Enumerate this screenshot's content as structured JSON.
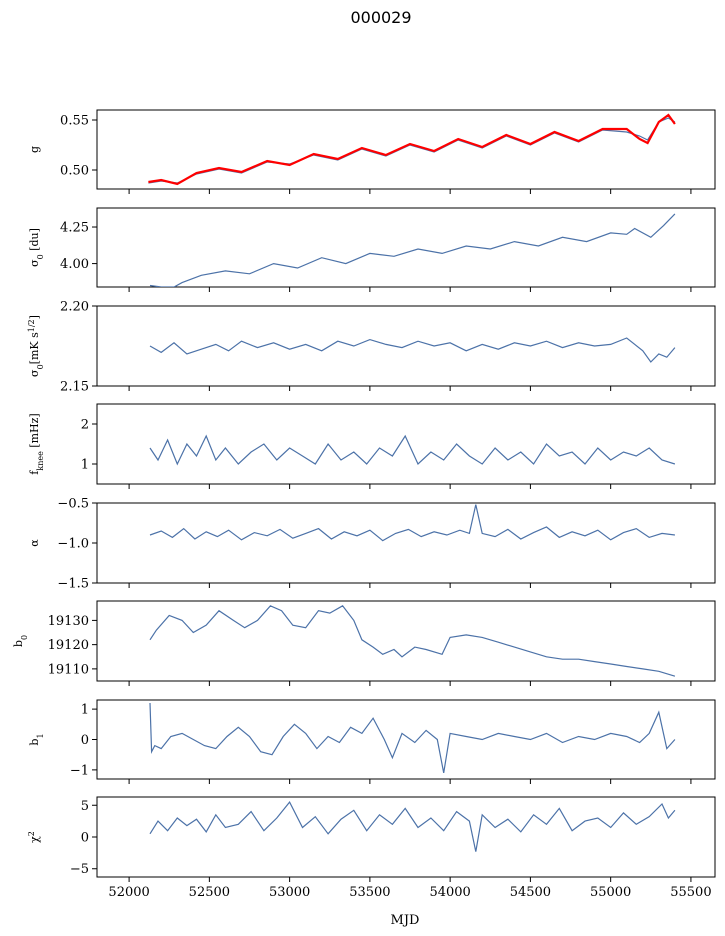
{
  "figure": {
    "title": "000029",
    "xlabel": "MJD"
  },
  "colors": {
    "series": "#4c72a8",
    "highlight": "#ff0000",
    "frame": "#000000"
  },
  "chart_data": [
    {
      "id": "g",
      "type": "line",
      "ylabel": "g",
      "xlim": [
        51800,
        55650
      ],
      "ylim": [
        0.481,
        0.56
      ],
      "yticks": [
        0.5,
        0.55
      ],
      "yticklabels": [
        "0.50",
        "0.55"
      ],
      "xticks": [
        52000,
        52500,
        53000,
        53500,
        54000,
        54500,
        55000,
        55500
      ],
      "show_xticklabels": false,
      "series": [
        {
          "x": [
            52120,
            52200,
            52300,
            52420,
            52560,
            52700,
            52860,
            53000,
            53150,
            53300,
            53450,
            53600,
            53750,
            53900,
            54050,
            54200,
            54350,
            54500,
            54650,
            54800,
            54950,
            55100,
            55180,
            55230,
            55300,
            55360,
            55400
          ],
          "y": [
            0.487,
            0.489,
            0.487,
            0.496,
            0.501,
            0.497,
            0.508,
            0.506,
            0.515,
            0.51,
            0.521,
            0.514,
            0.525,
            0.518,
            0.53,
            0.522,
            0.534,
            0.525,
            0.537,
            0.528,
            0.54,
            0.538,
            0.534,
            0.53,
            0.548,
            0.552,
            0.548
          ]
        }
      ],
      "overlay": {
        "color": "#ff0000",
        "x": [
          52120,
          52200,
          52300,
          52420,
          52560,
          52700,
          52860,
          53000,
          53150,
          53300,
          53450,
          53600,
          53750,
          53900,
          54050,
          54200,
          54350,
          54500,
          54650,
          54800,
          54950,
          55100,
          55180,
          55230,
          55300,
          55360,
          55400
        ],
        "y": [
          0.488,
          0.49,
          0.486,
          0.497,
          0.502,
          0.498,
          0.509,
          0.505,
          0.516,
          0.511,
          0.522,
          0.515,
          0.526,
          0.519,
          0.531,
          0.523,
          0.535,
          0.526,
          0.538,
          0.529,
          0.541,
          0.541,
          0.531,
          0.527,
          0.548,
          0.555,
          0.546
        ]
      }
    },
    {
      "id": "sigma0",
      "type": "line",
      "ylabel": "σ0 [du]",
      "xlim": [
        51800,
        55650
      ],
      "ylim": [
        3.84,
        4.38
      ],
      "yticks": [
        4.0,
        4.25
      ],
      "yticklabels": [
        "4.00",
        "4.25"
      ],
      "xticks": [
        52000,
        52500,
        53000,
        53500,
        54000,
        54500,
        55000,
        55500
      ],
      "show_xticklabels": false,
      "series": [
        {
          "x": [
            52130,
            52200,
            52280,
            52330,
            52450,
            52600,
            52750,
            52900,
            53050,
            53200,
            53350,
            53500,
            53650,
            53800,
            53950,
            54100,
            54250,
            54400,
            54550,
            54700,
            54850,
            55000,
            55100,
            55150,
            55250,
            55330,
            55400
          ],
          "y": [
            3.85,
            3.84,
            3.84,
            3.87,
            3.92,
            3.95,
            3.93,
            4.0,
            3.97,
            4.04,
            4.0,
            4.07,
            4.05,
            4.1,
            4.07,
            4.12,
            4.1,
            4.15,
            4.12,
            4.18,
            4.15,
            4.21,
            4.2,
            4.24,
            4.18,
            4.26,
            4.34
          ]
        }
      ]
    },
    {
      "id": "sigma0_noise",
      "type": "line",
      "ylabel": "σ0[mK s^1/2]",
      "xlim": [
        51800,
        55650
      ],
      "ylim": [
        2.15,
        2.2
      ],
      "yticks": [
        2.15,
        2.2
      ],
      "yticklabels": [
        "2.15",
        "2.20"
      ],
      "xticks": [
        52000,
        52500,
        53000,
        53500,
        54000,
        54500,
        55000,
        55500
      ],
      "show_xticklabels": false,
      "series": [
        {
          "x": [
            52130,
            52200,
            52280,
            52360,
            52450,
            52540,
            52620,
            52700,
            52800,
            52900,
            53000,
            53100,
            53200,
            53300,
            53400,
            53500,
            53600,
            53700,
            53800,
            53900,
            54000,
            54100,
            54200,
            54300,
            54400,
            54500,
            54600,
            54700,
            54800,
            54900,
            55000,
            55100,
            55200,
            55250,
            55300,
            55350,
            55400
          ],
          "y": [
            2.175,
            2.171,
            2.177,
            2.17,
            2.173,
            2.176,
            2.172,
            2.178,
            2.174,
            2.177,
            2.173,
            2.176,
            2.172,
            2.178,
            2.175,
            2.179,
            2.176,
            2.174,
            2.178,
            2.175,
            2.177,
            2.172,
            2.176,
            2.173,
            2.177,
            2.175,
            2.178,
            2.174,
            2.177,
            2.175,
            2.176,
            2.18,
            2.172,
            2.165,
            2.17,
            2.168,
            2.174
          ]
        }
      ]
    },
    {
      "id": "fknee",
      "type": "line",
      "ylabel": "f_knee [mHz]",
      "xlim": [
        51800,
        55650
      ],
      "ylim": [
        0.5,
        2.5
      ],
      "yticks": [
        1,
        2
      ],
      "yticklabels": [
        "1",
        "2"
      ],
      "xticks": [
        52000,
        52500,
        53000,
        53500,
        54000,
        54500,
        55000,
        55500
      ],
      "show_xticklabels": false,
      "series": [
        {
          "x": [
            52130,
            52180,
            52240,
            52300,
            52360,
            52420,
            52480,
            52540,
            52600,
            52680,
            52760,
            52840,
            52920,
            53000,
            53080,
            53160,
            53240,
            53320,
            53400,
            53480,
            53560,
            53640,
            53720,
            53800,
            53880,
            53960,
            54040,
            54120,
            54200,
            54280,
            54360,
            54440,
            54520,
            54600,
            54680,
            54760,
            54840,
            54920,
            55000,
            55080,
            55160,
            55240,
            55320,
            55400
          ],
          "y": [
            1.4,
            1.1,
            1.6,
            1.0,
            1.5,
            1.2,
            1.7,
            1.1,
            1.4,
            1.0,
            1.3,
            1.5,
            1.1,
            1.4,
            1.2,
            1.0,
            1.5,
            1.1,
            1.3,
            1.0,
            1.4,
            1.2,
            1.7,
            1.0,
            1.3,
            1.1,
            1.5,
            1.2,
            1.0,
            1.4,
            1.1,
            1.3,
            1.0,
            1.5,
            1.2,
            1.3,
            1.0,
            1.4,
            1.1,
            1.3,
            1.2,
            1.4,
            1.1,
            1.0
          ]
        }
      ]
    },
    {
      "id": "alpha",
      "type": "line",
      "ylabel": "α",
      "xlim": [
        51800,
        55650
      ],
      "ylim": [
        -1.5,
        -0.5
      ],
      "yticks": [
        -1.5,
        -1.0,
        -0.5
      ],
      "yticklabels": [
        "−1.5",
        "−1.0",
        "−0.5"
      ],
      "xticks": [
        52000,
        52500,
        53000,
        53500,
        54000,
        54500,
        55000,
        55500
      ],
      "show_xticklabels": false,
      "series": [
        {
          "x": [
            52130,
            52200,
            52270,
            52340,
            52410,
            52480,
            52550,
            52620,
            52700,
            52780,
            52860,
            52940,
            53020,
            53100,
            53180,
            53260,
            53340,
            53420,
            53500,
            53580,
            53660,
            53740,
            53820,
            53900,
            53980,
            54060,
            54120,
            54160,
            54200,
            54280,
            54360,
            54440,
            54520,
            54600,
            54680,
            54760,
            54840,
            54920,
            55000,
            55080,
            55160,
            55240,
            55320,
            55400
          ],
          "y": [
            -0.9,
            -0.85,
            -0.93,
            -0.82,
            -0.95,
            -0.86,
            -0.92,
            -0.84,
            -0.96,
            -0.87,
            -0.91,
            -0.83,
            -0.94,
            -0.88,
            -0.82,
            -0.95,
            -0.86,
            -0.91,
            -0.84,
            -0.97,
            -0.88,
            -0.83,
            -0.92,
            -0.86,
            -0.9,
            -0.84,
            -0.88,
            -0.52,
            -0.88,
            -0.92,
            -0.83,
            -0.95,
            -0.87,
            -0.8,
            -0.93,
            -0.86,
            -0.91,
            -0.84,
            -0.96,
            -0.87,
            -0.82,
            -0.93,
            -0.88,
            -0.9
          ]
        }
      ]
    },
    {
      "id": "b0",
      "type": "line",
      "ylabel": "b0",
      "xlim": [
        51800,
        55650
      ],
      "ylim": [
        19105,
        19138
      ],
      "yticks": [
        19110,
        19120,
        19130
      ],
      "yticklabels": [
        "19110",
        "19120",
        "19130"
      ],
      "xticks": [
        52000,
        52500,
        53000,
        53500,
        54000,
        54500,
        55000,
        55500
      ],
      "show_xticklabels": false,
      "series": [
        {
          "x": [
            52130,
            52170,
            52250,
            52330,
            52400,
            52480,
            52560,
            52650,
            52720,
            52800,
            52880,
            52950,
            53020,
            53100,
            53180,
            53250,
            53330,
            53400,
            53450,
            53520,
            53580,
            53650,
            53700,
            53780,
            53850,
            53950,
            54000,
            54100,
            54200,
            54300,
            54400,
            54500,
            54600,
            54700,
            54800,
            54900,
            55000,
            55100,
            55200,
            55300,
            55400
          ],
          "y": [
            19122,
            19126,
            19132,
            19130,
            19125,
            19128,
            19134,
            19130,
            19127,
            19130,
            19136,
            19134,
            19128,
            19127,
            19134,
            19133,
            19136,
            19130,
            19122,
            19119,
            19116,
            19118,
            19115,
            19119,
            19118,
            19116,
            19123,
            19124,
            19123,
            19121,
            19119,
            19117,
            19115,
            19114,
            19114,
            19113,
            19112,
            19111,
            19110,
            19109,
            19107
          ]
        }
      ]
    },
    {
      "id": "b1",
      "type": "line",
      "ylabel": "b1",
      "xlim": [
        51800,
        55650
      ],
      "ylim": [
        -1.3,
        1.3
      ],
      "yticks": [
        -1,
        0,
        1
      ],
      "yticklabels": [
        "−1",
        "0",
        "1"
      ],
      "xticks": [
        52000,
        52500,
        53000,
        53500,
        54000,
        54500,
        55000,
        55500
      ],
      "show_xticklabels": false,
      "series": [
        {
          "x": [
            52130,
            52140,
            52160,
            52200,
            52260,
            52330,
            52400,
            52470,
            52540,
            52610,
            52680,
            52750,
            52820,
            52890,
            52960,
            53030,
            53100,
            53170,
            53240,
            53310,
            53380,
            53450,
            53520,
            53590,
            53640,
            53700,
            53780,
            53850,
            53920,
            53960,
            54000,
            54100,
            54200,
            54300,
            54400,
            54500,
            54600,
            54700,
            54800,
            54900,
            55000,
            55100,
            55180,
            55240,
            55300,
            55350,
            55400
          ],
          "y": [
            1.2,
            -0.4,
            -0.2,
            -0.3,
            0.1,
            0.2,
            0.0,
            -0.2,
            -0.3,
            0.1,
            0.4,
            0.1,
            -0.4,
            -0.5,
            0.1,
            0.5,
            0.2,
            -0.3,
            0.1,
            -0.1,
            0.4,
            0.2,
            0.7,
            0.0,
            -0.6,
            0.2,
            -0.1,
            0.3,
            0.0,
            -1.1,
            0.2,
            0.1,
            0.0,
            0.2,
            0.1,
            0.0,
            0.2,
            -0.1,
            0.1,
            0.0,
            0.2,
            0.1,
            -0.1,
            0.2,
            0.9,
            -0.3,
            0.0
          ]
        }
      ]
    },
    {
      "id": "chi2",
      "type": "line",
      "ylabel": "χ²",
      "xlim": [
        51800,
        55650
      ],
      "ylim": [
        -6.3,
        6.3
      ],
      "yticks": [
        -5,
        0,
        5
      ],
      "yticklabels": [
        "−5",
        "0",
        "5"
      ],
      "xticks": [
        52000,
        52500,
        53000,
        53500,
        54000,
        54500,
        55000,
        55500
      ],
      "xticklabels": [
        "52000",
        "52500",
        "53000",
        "53500",
        "54000",
        "54500",
        "55000",
        "55500"
      ],
      "show_xticklabels": true,
      "series": [
        {
          "x": [
            52130,
            52180,
            52240,
            52300,
            52360,
            52420,
            52480,
            52540,
            52600,
            52680,
            52760,
            52840,
            52920,
            53000,
            53080,
            53160,
            53240,
            53320,
            53400,
            53480,
            53560,
            53640,
            53720,
            53800,
            53880,
            53960,
            54040,
            54120,
            54160,
            54200,
            54280,
            54360,
            54440,
            54520,
            54600,
            54680,
            54760,
            54840,
            54920,
            55000,
            55080,
            55160,
            55240,
            55320,
            55360,
            55400
          ],
          "y": [
            0.5,
            2.5,
            1.0,
            3.0,
            1.8,
            2.8,
            0.8,
            3.5,
            1.5,
            2.0,
            4.0,
            1.0,
            3.0,
            5.5,
            1.5,
            3.2,
            0.5,
            2.8,
            4.2,
            1.0,
            3.5,
            2.0,
            4.5,
            1.5,
            3.0,
            1.0,
            4.0,
            2.5,
            -2.3,
            3.5,
            1.5,
            2.8,
            0.8,
            3.5,
            2.0,
            4.5,
            1.0,
            2.5,
            3.0,
            1.5,
            3.8,
            2.0,
            3.2,
            5.2,
            3.0,
            4.2
          ]
        }
      ]
    }
  ]
}
